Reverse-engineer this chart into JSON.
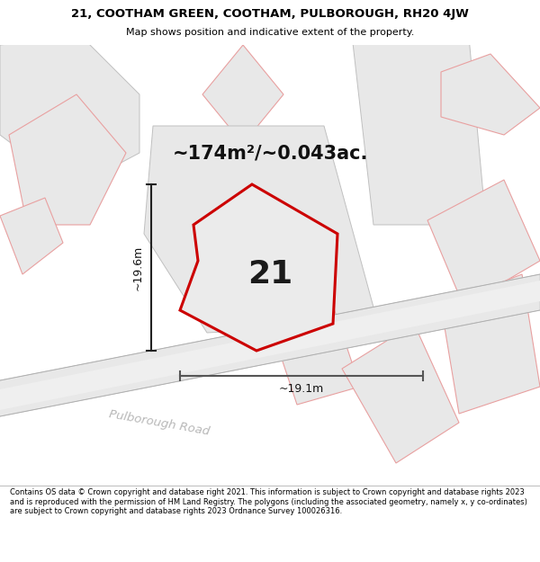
{
  "title_line1": "21, COOTHAM GREEN, COOTHAM, PULBOROUGH, RH20 4JW",
  "title_line2": "Map shows position and indicative extent of the property.",
  "area_text": "~174m²/~0.043ac.",
  "label_21": "21",
  "dim_height": "~19.6m",
  "dim_width": "~19.1m",
  "road_label": "Pulborough Road",
  "footer": "Contains OS data © Crown copyright and database right 2021. This information is subject to Crown copyright and database rights 2023 and is reproduced with the permission of HM Land Registry. The polygons (including the associated geometry, namely x, y co-ordinates) are subject to Crown copyright and database rights 2023 Ordnance Survey 100026316.",
  "bg_color": "#ffffff",
  "map_bg": "#f7f7f7",
  "poly_fill": "#e8e8e8",
  "poly_edge_light": "#e8a0a0",
  "poly_edge_gray": "#c0c0c0",
  "poly_edge_dark": "#cc0000",
  "road_fill": "#e0e0e0",
  "road_line": "#c8c8c8",
  "road_text": "#b8b8b8",
  "dim_color": "#333333"
}
